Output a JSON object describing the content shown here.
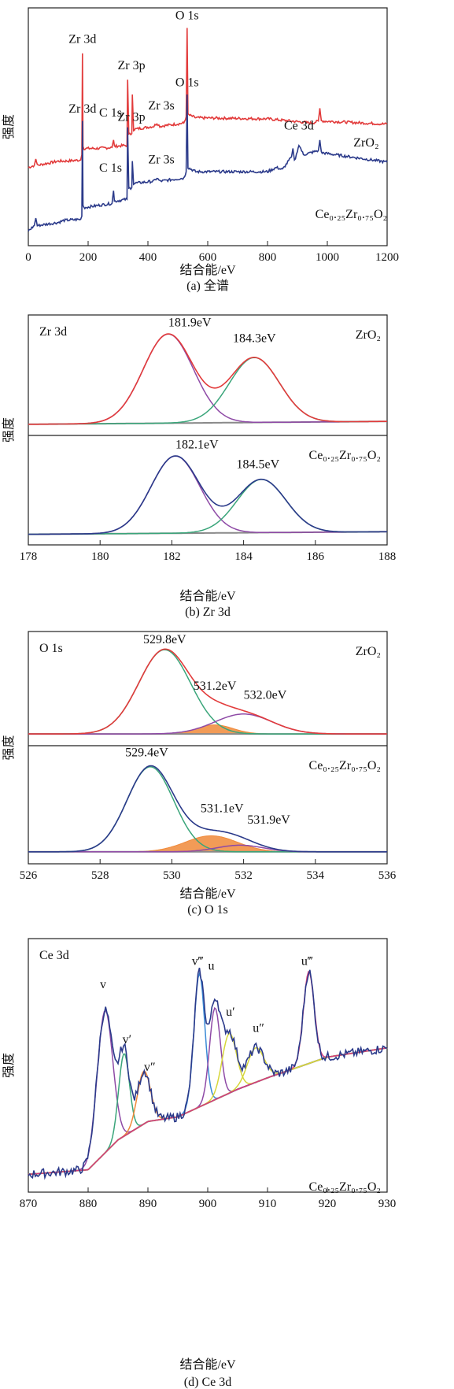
{
  "colors": {
    "red": "#e23b3b",
    "navy": "#2b3a8a",
    "purple": "#8e4aa6",
    "green": "#3aa57a",
    "gray": "#8a8a8a",
    "orange": "#f08a3a",
    "magenta": "#d43a7a",
    "blue": "#3a8ad6",
    "yellow": "#d6d63a"
  },
  "y_label": "强度",
  "x_label": "结合能/eV",
  "chart_data": [
    {
      "type": "line",
      "caption": "(a) 全谱",
      "xlim": [
        0,
        1200
      ],
      "xticks": [
        0,
        200,
        400,
        600,
        800,
        1000,
        1200
      ],
      "series": [
        {
          "name": "ZrO₂",
          "color": "#e23b3b",
          "points": [
            [
              0,
              0.6
            ],
            [
              20,
              0.62
            ],
            [
              25,
              0.68
            ],
            [
              30,
              0.62
            ],
            [
              100,
              0.66
            ],
            [
              120,
              0.66
            ],
            [
              175,
              0.67
            ],
            [
              179,
              0.72
            ],
            [
              181,
              1.68
            ],
            [
              183,
              0.8
            ],
            [
              186,
              0.78
            ],
            [
              230,
              0.78
            ],
            [
              280,
              0.79
            ],
            [
              285,
              0.86
            ],
            [
              288,
              0.8
            ],
            [
              330,
              0.81
            ],
            [
              332,
              1.43
            ],
            [
              336,
              0.91
            ],
            [
              346,
              0.92
            ],
            [
              348,
              1.29
            ],
            [
              352,
              0.96
            ],
            [
              420,
              0.99
            ],
            [
              430,
              1.02
            ],
            [
              440,
              0.99
            ],
            [
              520,
              1.02
            ],
            [
              528,
              1.08
            ],
            [
              531,
              1.92
            ],
            [
              534,
              1.1
            ],
            [
              560,
              1.07
            ],
            [
              800,
              1.06
            ],
            [
              950,
              1.02
            ],
            [
              970,
              1.04
            ],
            [
              975,
              1.16
            ],
            [
              980,
              1.04
            ],
            [
              1200,
              1.01
            ]
          ]
        },
        {
          "name": "Ce₀.₂₅Zr₀.₇₅O₂",
          "color": "#2b3a8a",
          "points": [
            [
              0,
              0.0
            ],
            [
              20,
              0.05
            ],
            [
              25,
              0.12
            ],
            [
              30,
              0.05
            ],
            [
              100,
              0.08
            ],
            [
              120,
              0.1
            ],
            [
              175,
              0.11
            ],
            [
              179,
              0.14
            ],
            [
              181,
              1.04
            ],
            [
              183,
              0.24
            ],
            [
              186,
              0.22
            ],
            [
              230,
              0.24
            ],
            [
              280,
              0.26
            ],
            [
              285,
              0.38
            ],
            [
              288,
              0.28
            ],
            [
              330,
              0.3
            ],
            [
              332,
              0.98
            ],
            [
              336,
              0.4
            ],
            [
              346,
              0.41
            ],
            [
              348,
              0.66
            ],
            [
              352,
              0.45
            ],
            [
              420,
              0.47
            ],
            [
              430,
              0.5
            ],
            [
              440,
              0.47
            ],
            [
              520,
              0.5
            ],
            [
              528,
              0.56
            ],
            [
              531,
              1.29
            ],
            [
              534,
              0.6
            ],
            [
              560,
              0.56
            ],
            [
              800,
              0.56
            ],
            [
              830,
              0.6
            ],
            [
              850,
              0.58
            ],
            [
              880,
              0.7
            ],
            [
              885,
              0.78
            ],
            [
              890,
              0.66
            ],
            [
              900,
              0.75
            ],
            [
              905,
              0.82
            ],
            [
              920,
              0.72
            ],
            [
              970,
              0.76
            ],
            [
              975,
              0.86
            ],
            [
              980,
              0.74
            ],
            [
              1200,
              0.65
            ]
          ]
        }
      ],
      "labels": [
        {
          "text": "Zr 3d",
          "x": 181,
          "y": 1.78
        },
        {
          "text": "O 1s",
          "x": 531,
          "y": 2.0
        },
        {
          "text": "Zr 3p",
          "x": 345,
          "y": 1.53
        },
        {
          "text": "C 1s",
          "x": 275,
          "y": 1.08
        },
        {
          "text": "Zr 3s",
          "x": 445,
          "y": 1.15
        },
        {
          "text": "ZrO₂",
          "x": 1130,
          "y": 0.8
        },
        {
          "text": "Zr 3d",
          "x": 181,
          "y": 1.12
        },
        {
          "text": "O 1s",
          "x": 531,
          "y": 1.37
        },
        {
          "text": "Zr 3p",
          "x": 345,
          "y": 1.04
        },
        {
          "text": "C 1s",
          "x": 275,
          "y": 0.56
        },
        {
          "text": "Zr 3s",
          "x": 445,
          "y": 0.64
        },
        {
          "text": "Ce 3d",
          "x": 905,
          "y": 0.96
        },
        {
          "text": "Ce₀.₂₅Zr₀.₇₅O₂",
          "x": 1080,
          "y": 0.12
        }
      ]
    },
    {
      "type": "line",
      "caption": "(b) Zr 3d",
      "xlim": [
        178,
        188
      ],
      "xticks": [
        178,
        180,
        182,
        184,
        186,
        188
      ],
      "panels": [
        {
          "title": "Zr 3d",
          "sample": "ZrO₂",
          "background": {
            "color": "#8a8a8a",
            "start": 0.05,
            "end": 0.08
          },
          "peaks": [
            {
              "center": 181.9,
              "height": 0.92,
              "width": 0.7,
              "color": "#8e4aa6"
            },
            {
              "center": 184.3,
              "height": 0.67,
              "width": 0.7,
              "color": "#3aa57a"
            }
          ],
          "envelope_color": "#e23b3b",
          "peak_labels": [
            {
              "text": "181.9eV",
              "x": 182.5,
              "y": 1.06
            },
            {
              "text": "184.3eV",
              "x": 184.3,
              "y": 0.9
            }
          ]
        },
        {
          "title": "",
          "sample": "Ce₀.₂₅Zr₀.₇₅O₂",
          "background": {
            "color": "#8a8a8a",
            "start": 0.05,
            "end": 0.08
          },
          "peaks": [
            {
              "center": 182.1,
              "height": 0.9,
              "width": 0.68,
              "color": "#8e4aa6"
            },
            {
              "center": 184.5,
              "height": 0.62,
              "width": 0.68,
              "color": "#3aa57a"
            }
          ],
          "envelope_color": "#2b3a8a",
          "peak_labels": [
            {
              "text": "182.1eV",
              "x": 182.7,
              "y": 1.05
            },
            {
              "text": "184.5eV",
              "x": 184.4,
              "y": 0.82
            }
          ]
        }
      ]
    },
    {
      "type": "line",
      "caption": "(c) O 1s",
      "xlim": [
        526,
        536
      ],
      "xticks": [
        526,
        528,
        530,
        532,
        534,
        536
      ],
      "panels": [
        {
          "title": "O 1s",
          "sample": "ZrO₂",
          "background": {
            "color": "#8a8a8a",
            "start": 0.06,
            "end": 0.06
          },
          "peaks": [
            {
              "center": 529.8,
              "height": 0.93,
              "width": 0.72,
              "color": "#3aa57a"
            },
            {
              "center": 531.2,
              "height": 0.1,
              "width": 0.5,
              "color": "#f08a3a",
              "fill": true
            },
            {
              "center": 532.0,
              "height": 0.22,
              "width": 0.8,
              "color": "#8e4aa6"
            }
          ],
          "envelope_color": "#e23b3b",
          "peak_labels": [
            {
              "text": "529.8eV",
              "x": 529.8,
              "y": 1.06
            },
            {
              "text": "531.2eV",
              "x": 531.2,
              "y": 0.55
            },
            {
              "text": "532.0eV",
              "x": 532.6,
              "y": 0.45
            }
          ]
        },
        {
          "title": "",
          "sample": "Ce₀.₂₅Zr₀.₇₅O₂",
          "background": {
            "color": "#8a8a8a",
            "start": 0.06,
            "end": 0.06
          },
          "peaks": [
            {
              "center": 529.4,
              "height": 0.9,
              "width": 0.65,
              "color": "#3aa57a"
            },
            {
              "center": 531.1,
              "height": 0.17,
              "width": 0.72,
              "color": "#f08a3a",
              "fill": true
            },
            {
              "center": 531.9,
              "height": 0.07,
              "width": 0.65,
              "color": "#8e4aa6"
            }
          ],
          "envelope_color": "#2b3a8a",
          "peak_labels": [
            {
              "text": "529.4eV",
              "x": 529.3,
              "y": 1.07
            },
            {
              "text": "531.1eV",
              "x": 531.4,
              "y": 0.48
            },
            {
              "text": "531.9eV",
              "x": 532.7,
              "y": 0.36
            }
          ]
        }
      ]
    },
    {
      "type": "line",
      "caption": "(d) Ce 3d",
      "xlim": [
        870,
        930
      ],
      "xticks": [
        870,
        880,
        890,
        900,
        910,
        920,
        930
      ],
      "panels": [
        {
          "title": "Ce 3d",
          "sample": "Ce₀.₂₅Zr₀.₇₅O₂",
          "background": {
            "color": "#8a8a8a",
            "points": [
              [
                870,
                0.05
              ],
              [
                880,
                0.07
              ],
              [
                885,
                0.2
              ],
              [
                890,
                0.28
              ],
              [
                895,
                0.3
              ],
              [
                900,
                0.36
              ],
              [
                905,
                0.42
              ],
              [
                910,
                0.47
              ],
              [
                920,
                0.56
              ],
              [
                930,
                0.6
              ]
            ]
          },
          "peaks": [
            {
              "center": 882.8,
              "height": 0.62,
              "width": 1.3,
              "color": "#8e4aa6"
            },
            {
              "center": 886.0,
              "height": 0.36,
              "width": 0.9,
              "color": "#3aa57a"
            },
            {
              "center": 889.3,
              "height": 0.23,
              "width": 1.1,
              "color": "#f08a3a"
            },
            {
              "center": 898.6,
              "height": 0.58,
              "width": 0.9,
              "color": "#3a8ad6"
            },
            {
              "center": 901.2,
              "height": 0.4,
              "width": 0.9,
              "color": "#8e4aa6"
            },
            {
              "center": 903.6,
              "height": 0.26,
              "width": 1.2,
              "color": "#d6d63a"
            },
            {
              "center": 908.0,
              "height": 0.15,
              "width": 1.4,
              "color": "#d6d63a"
            },
            {
              "center": 916.9,
              "height": 0.4,
              "width": 0.9,
              "color": "#d43a7a"
            }
          ],
          "envelope_color": "#2b3a8a",
          "noisy": true,
          "peak_labels": [
            {
              "text": "v",
              "x": 882.5,
              "y": 0.86
            },
            {
              "text": "v′",
              "x": 886.5,
              "y": 0.62
            },
            {
              "text": "v″",
              "x": 890.3,
              "y": 0.5
            },
            {
              "text": "v‴",
              "x": 898.3,
              "y": 0.96
            },
            {
              "text": "u",
              "x": 900.6,
              "y": 0.94
            },
            {
              "text": "u′",
              "x": 903.8,
              "y": 0.74
            },
            {
              "text": "u″",
              "x": 908.5,
              "y": 0.67
            },
            {
              "text": "u‴",
              "x": 916.6,
              "y": 0.96
            }
          ]
        }
      ]
    }
  ]
}
